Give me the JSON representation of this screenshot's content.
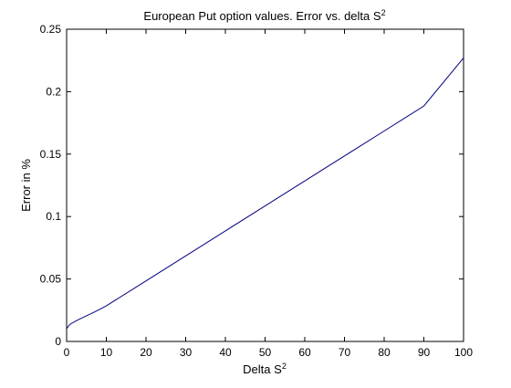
{
  "chart_data": {
    "type": "line",
    "title": "European Put option values. Error vs. delta S",
    "title_superscript": "2",
    "xlabel": "Delta S",
    "xlabel_superscript": "2",
    "ylabel": "Error in %",
    "xlim": [
      0,
      100
    ],
    "ylim": [
      0,
      0.25
    ],
    "xticks": [
      0,
      10,
      20,
      30,
      40,
      50,
      60,
      70,
      80,
      90,
      100
    ],
    "xtick_labels": [
      "0",
      "10",
      "20",
      "30",
      "40",
      "50",
      "60",
      "70",
      "80",
      "90",
      "100"
    ],
    "yticks": [
      0,
      0.05,
      0.1,
      0.15,
      0.2,
      0.25
    ],
    "ytick_labels": [
      "0",
      "0.05",
      "0.1",
      "0.15",
      "0.2",
      "0.25"
    ],
    "grid": false,
    "series": [
      {
        "color": "#00007f",
        "x": [
          0.1,
          0.5,
          1,
          2,
          3,
          5,
          7,
          10,
          20,
          30,
          40,
          50,
          60,
          70,
          80,
          90,
          100
        ],
        "y": [
          0.0105,
          0.0125,
          0.014,
          0.0158,
          0.0175,
          0.0205,
          0.0235,
          0.0285,
          0.0485,
          0.0685,
          0.0885,
          0.1085,
          0.1285,
          0.1485,
          0.1685,
          0.1885,
          0.227
        ]
      }
    ]
  }
}
